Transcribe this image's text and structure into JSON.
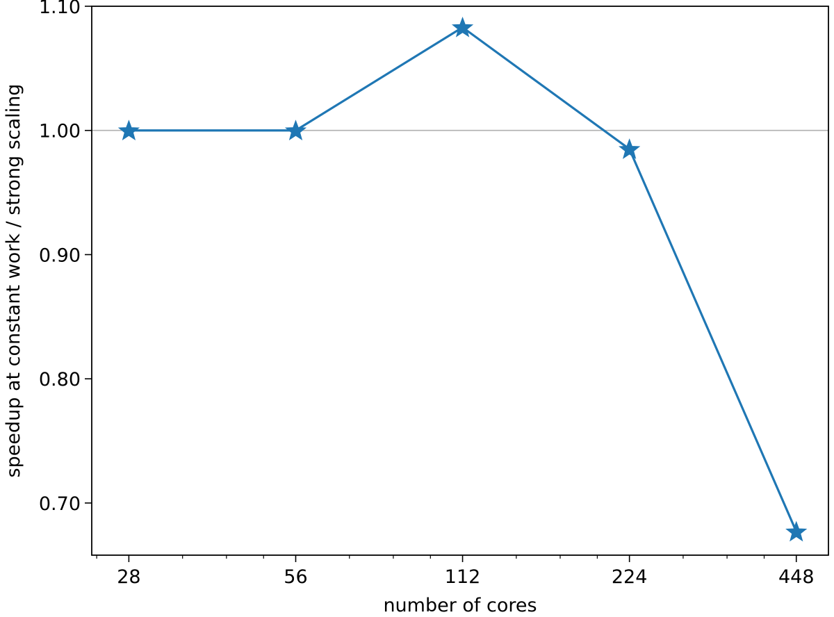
{
  "chart_data": {
    "type": "line",
    "title": "",
    "xlabel": "number of cores",
    "ylabel": "speedup at constant work / strong scaling",
    "x_scale": "log2",
    "x_ticks": [
      "28",
      "56",
      "112",
      "224",
      "448"
    ],
    "y_ticks": [
      "0.70",
      "0.80",
      "0.90",
      "1.00",
      "1.10"
    ],
    "xlim": [
      24,
      512
    ],
    "ylim": [
      0.658,
      1.1
    ],
    "reference_line": {
      "y": 1.0,
      "color": "#b0b0b0"
    },
    "grid": false,
    "legend": "none",
    "series": [
      {
        "x": [
          28,
          56,
          112,
          224,
          448
        ],
        "y": [
          1.0,
          1.0,
          1.083,
          0.985,
          0.677
        ],
        "marker": "star",
        "color": "#1f77b4"
      }
    ]
  }
}
